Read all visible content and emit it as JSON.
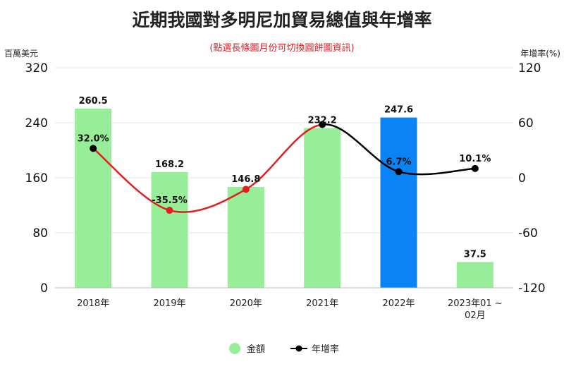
{
  "chart_data": {
    "type": "bar",
    "title": "近期我國對多明尼加貿易總值與年增率",
    "subtitle": "(點選長條圖月份可切換圓餅圖資訊)",
    "y_left_unit": "百萬美元",
    "y_right_unit": "年增率(%)",
    "categories": [
      [
        "2018年"
      ],
      [
        "2019年"
      ],
      [
        "2020年"
      ],
      [
        "2021年"
      ],
      [
        "2022年"
      ],
      [
        "2023年01 ~",
        "02月"
      ]
    ],
    "ylim_left": [
      0,
      320
    ],
    "yticks_left": [
      "0",
      "80",
      "160",
      "240",
      "320"
    ],
    "ylim_right": [
      -120,
      120
    ],
    "yticks_right": [
      "-120",
      "-60",
      "0",
      "60",
      "120"
    ],
    "series": [
      {
        "name": "金額",
        "type": "bar",
        "axis": "left",
        "values": [
          260.5,
          168.2,
          146.8,
          232.2,
          247.6,
          37.5
        ],
        "labels": [
          "260.5",
          "168.2",
          "146.8",
          "232.2",
          "247.6",
          "37.5"
        ],
        "color": "#98ee98",
        "highlight_index": 4,
        "highlight_color": "#0a84f5"
      },
      {
        "name": "年增率",
        "type": "line",
        "axis": "right",
        "values": [
          32.0,
          -35.5,
          -12.6,
          58.1,
          6.7,
          10.1
        ],
        "labels": [
          "32.0%",
          "-35.5%",
          null,
          null,
          "6.7%",
          "10.1%"
        ],
        "color": "#000000",
        "negative_color": "#e02020"
      }
    ],
    "grid": true,
    "legend": "bottom-center"
  }
}
